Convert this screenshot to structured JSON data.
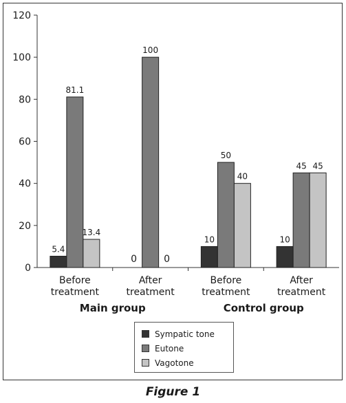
{
  "chart_data": {
    "type": "bar",
    "categories": [
      "Before\ntreatment",
      "After\ntreatment",
      "Before\ntreatment",
      "After\ntreatment"
    ],
    "groups": [
      {
        "label": "Main group",
        "categories": [
          0,
          1
        ]
      },
      {
        "label": "Control group",
        "categories": [
          2,
          3
        ]
      }
    ],
    "series": [
      {
        "name": "Sympatic tone",
        "color": "#333333",
        "values": [
          5.4,
          0,
          10,
          10
        ]
      },
      {
        "name": "Eutone",
        "color": "#7a7a7a",
        "values": [
          81.1,
          100,
          50,
          45
        ]
      },
      {
        "name": "Vagotone",
        "color": "#c4c4c4",
        "values": [
          13.4,
          0,
          40,
          45
        ]
      }
    ],
    "ylim": [
      0,
      120
    ],
    "yticks": [
      0,
      20,
      40,
      60,
      80,
      100,
      120
    ],
    "grid": false,
    "legend_position": "bottom-center",
    "title": "",
    "xlabel": "",
    "ylabel": ""
  },
  "caption": "Figure 1"
}
